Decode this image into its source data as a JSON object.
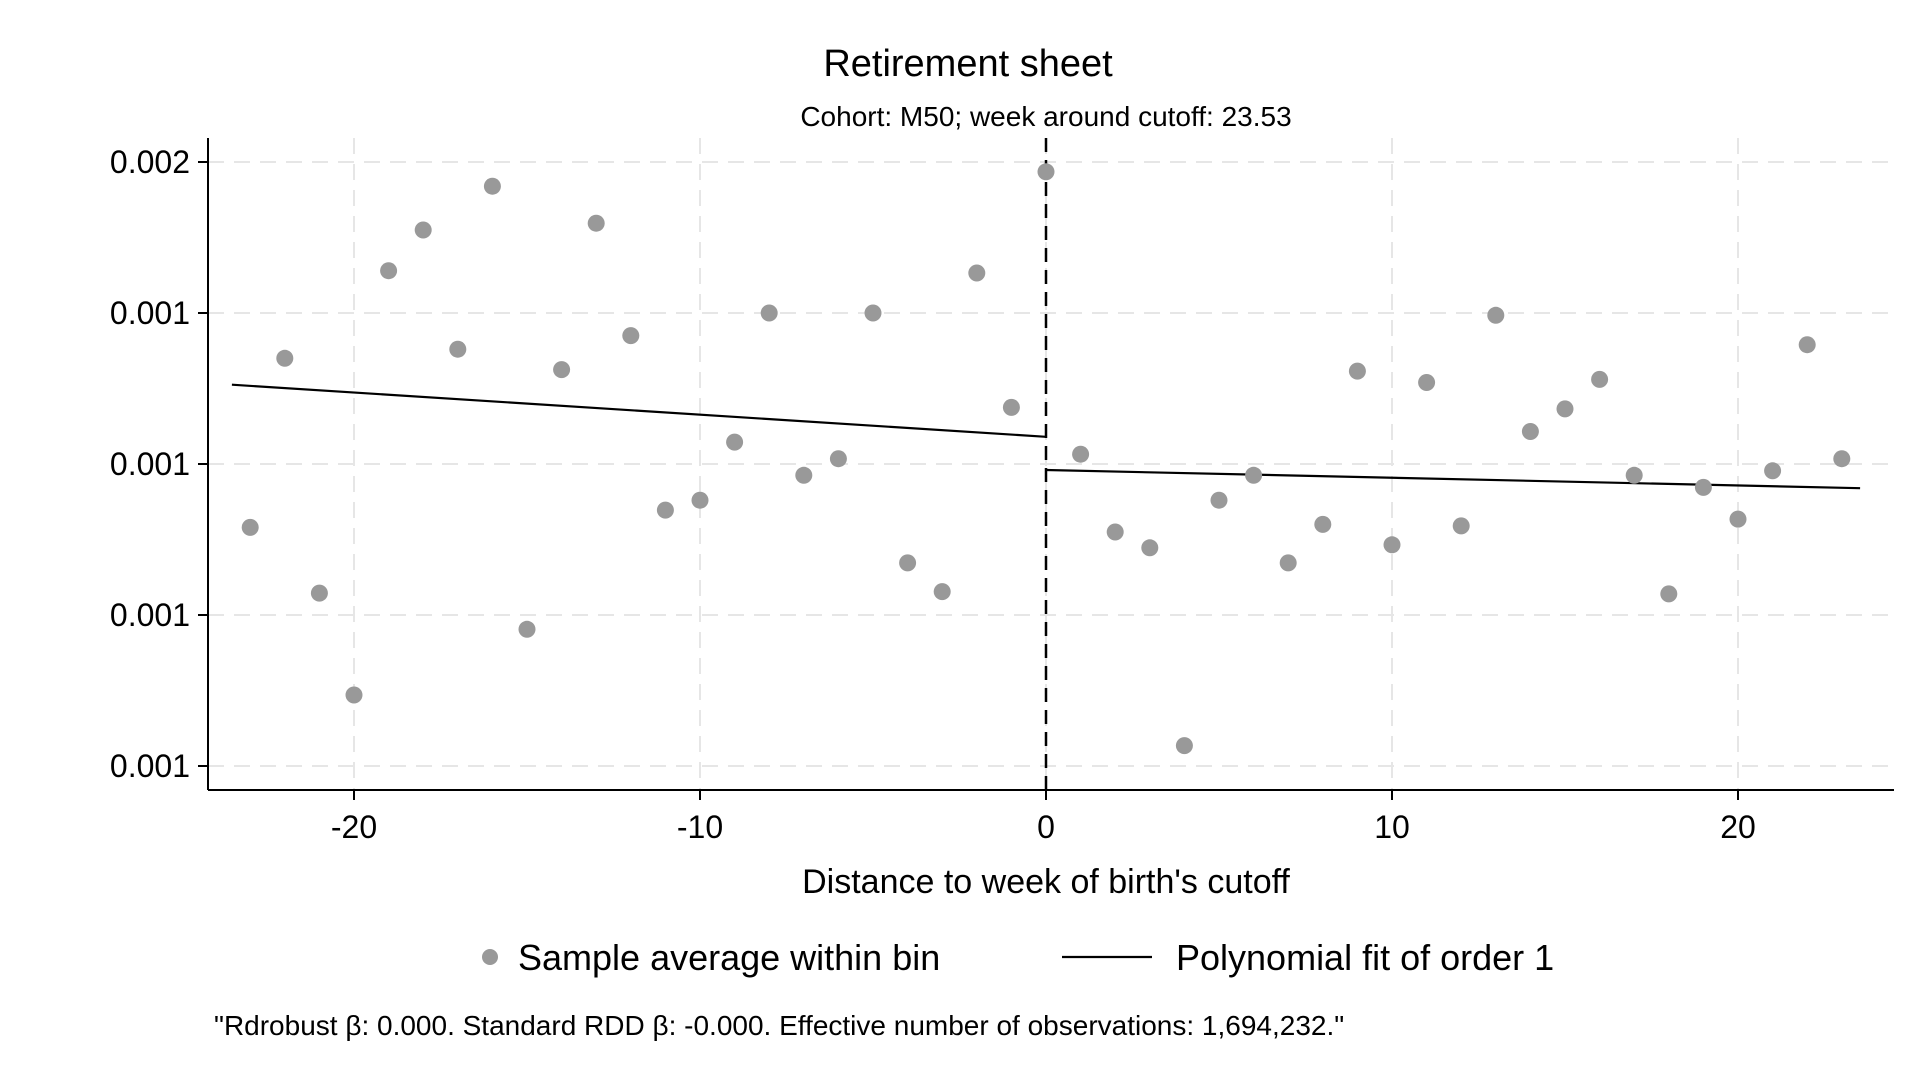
{
  "chart_data": {
    "type": "scatter",
    "title": "Retirement sheet",
    "subtitle": "Cohort: M50; week around cutoff: 23.53",
    "xlabel": "Distance to week of birth's cutoff",
    "ylabel": "",
    "xlim": [
      -24.3,
      24.3
    ],
    "ylim": [
      0.00089,
      0.0021
    ],
    "x_ticks": [
      {
        "value": -20,
        "label": "-20"
      },
      {
        "value": -10,
        "label": "-10"
      },
      {
        "value": 0,
        "label": "0"
      },
      {
        "value": 10,
        "label": "10"
      },
      {
        "value": 20,
        "label": "20"
      }
    ],
    "y_ticks": [
      {
        "value": 0.002,
        "label": "0.002"
      },
      {
        "value": 0.0018,
        "label": "0.001"
      },
      {
        "value": 0.0016,
        "label": "0.001"
      },
      {
        "value": 0.0014,
        "label": "0.001"
      },
      {
        "value": 0.0012,
        "label": "0.001"
      }
    ],
    "grid": true,
    "cutoff_x": 0,
    "legend_position": "bottom",
    "legend": [
      {
        "label": "Sample average within bin",
        "type": "marker",
        "color": "#999999"
      },
      {
        "label": "Polynomial fit of order 1",
        "type": "line",
        "color": "#000000"
      }
    ],
    "note": "\"Rdrobust β: 0.000. Standard RDD β: -0.000. Effective number of observations: 1,694,232.\"",
    "series": [
      {
        "type": "scatter",
        "color": "#999999",
        "points": [
          {
            "x": -23,
            "y": 0.001516
          },
          {
            "x": -22,
            "y": 0.00174
          },
          {
            "x": -21,
            "y": 0.001429
          },
          {
            "x": -20,
            "y": 0.001294
          },
          {
            "x": -19,
            "y": 0.001856
          },
          {
            "x": -18,
            "y": 0.00191
          },
          {
            "x": -17,
            "y": 0.001752
          },
          {
            "x": -16,
            "y": 0.001968
          },
          {
            "x": -15,
            "y": 0.001381
          },
          {
            "x": -14,
            "y": 0.001725
          },
          {
            "x": -13,
            "y": 0.001919
          },
          {
            "x": -12,
            "y": 0.00177
          },
          {
            "x": -11,
            "y": 0.001539
          },
          {
            "x": -10,
            "y": 0.001552
          },
          {
            "x": -9,
            "y": 0.001629
          },
          {
            "x": -8,
            "y": 0.0018
          },
          {
            "x": -7,
            "y": 0.001585
          },
          {
            "x": -6,
            "y": 0.001607
          },
          {
            "x": -5,
            "y": 0.0018
          },
          {
            "x": -4,
            "y": 0.001469
          },
          {
            "x": -3,
            "y": 0.001431
          },
          {
            "x": -2,
            "y": 0.001853
          },
          {
            "x": -1,
            "y": 0.001675
          },
          {
            "x": 0,
            "y": 0.001987
          },
          {
            "x": 1,
            "y": 0.001613
          },
          {
            "x": 2,
            "y": 0.00151
          },
          {
            "x": 3,
            "y": 0.001489
          },
          {
            "x": 4,
            "y": 0.001227
          },
          {
            "x": 5,
            "y": 0.001552
          },
          {
            "x": 6,
            "y": 0.001585
          },
          {
            "x": 7,
            "y": 0.001469
          },
          {
            "x": 8,
            "y": 0.00152
          },
          {
            "x": 9,
            "y": 0.001723
          },
          {
            "x": 10,
            "y": 0.001493
          },
          {
            "x": 11,
            "y": 0.001708
          },
          {
            "x": 12,
            "y": 0.001518
          },
          {
            "x": 13,
            "y": 0.001797
          },
          {
            "x": 14,
            "y": 0.001643
          },
          {
            "x": 15,
            "y": 0.001673
          },
          {
            "x": 16,
            "y": 0.001712
          },
          {
            "x": 17,
            "y": 0.001585
          },
          {
            "x": 18,
            "y": 0.001428
          },
          {
            "x": 19,
            "y": 0.001569
          },
          {
            "x": 20,
            "y": 0.001527
          },
          {
            "x": 21,
            "y": 0.001591
          },
          {
            "x": 22,
            "y": 0.001758
          },
          {
            "x": 23,
            "y": 0.001607
          }
        ]
      },
      {
        "type": "line",
        "color": "#000000",
        "segments": [
          [
            {
              "x": -23.53,
              "y": 0.001705
            },
            {
              "x": 0,
              "y": 0.001636
            }
          ],
          [
            {
              "x": 0,
              "y": 0.001592
            },
            {
              "x": 23.53,
              "y": 0.001568
            }
          ]
        ]
      }
    ]
  }
}
